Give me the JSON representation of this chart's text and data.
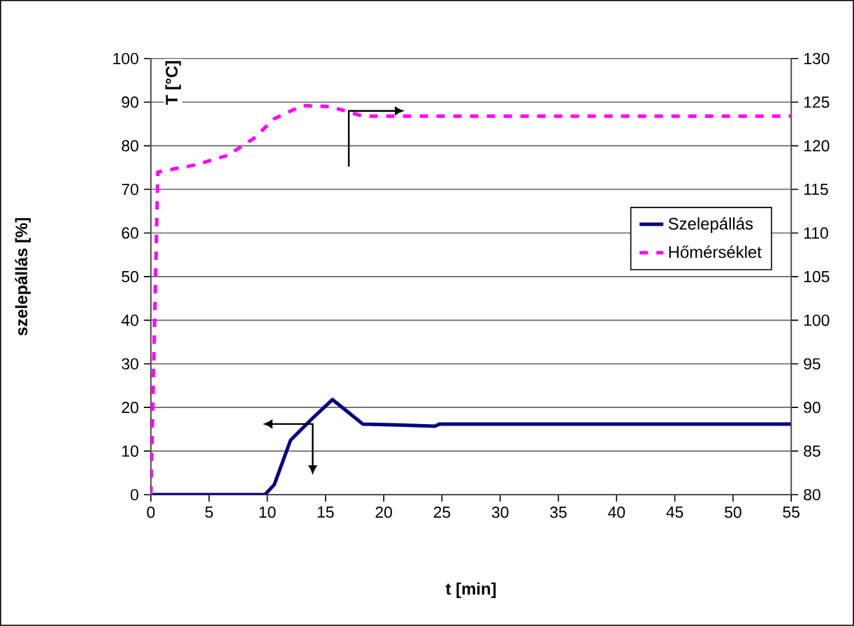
{
  "chart_data": {
    "type": "line",
    "xlabel": "t [min]",
    "ylabel": "szelepállás [%]",
    "annotations": [
      "T [°C]"
    ],
    "xlim": [
      0,
      55
    ],
    "xticks": [
      0,
      5,
      10,
      15,
      20,
      25,
      30,
      35,
      40,
      45,
      50,
      55
    ],
    "ylim": [
      0,
      100
    ],
    "yticks": [
      0,
      10,
      20,
      30,
      40,
      50,
      60,
      70,
      80,
      90,
      100
    ],
    "y2lim": [
      80,
      130
    ],
    "y2ticks": [
      80,
      85,
      90,
      95,
      100,
      105,
      110,
      115,
      120,
      125,
      130
    ],
    "grid": "y",
    "legend": "right",
    "series": [
      {
        "name": "Szelepállás",
        "color": "#000080",
        "line_style": "solid",
        "x": [
          0,
          9.8,
          10.6,
          12.0,
          13.8,
          15.6,
          18.2,
          21.2,
          24.4,
          24.8,
          55
        ],
        "values": [
          0,
          0,
          2.3,
          12.5,
          17.3,
          21.8,
          16.2,
          16.0,
          15.7,
          16.2,
          16.2
        ]
      },
      {
        "name": "Hőmérséklet",
        "color": "#ff00ff",
        "line_style": "dashed",
        "axis": "y2",
        "x": [
          0,
          0.6,
          3.8,
          6.6,
          8.8,
          10.6,
          13.0,
          15.4,
          18.2,
          55
        ],
        "values": [
          80,
          117.0,
          117.8,
          118.9,
          120.8,
          123.1,
          124.6,
          124.5,
          123.4,
          123.4
        ]
      }
    ]
  }
}
